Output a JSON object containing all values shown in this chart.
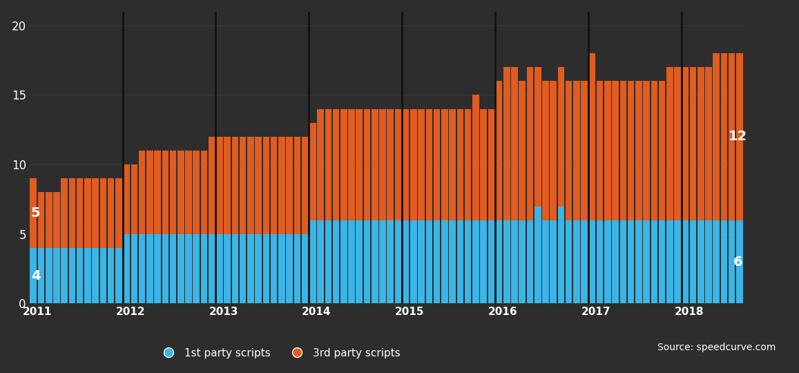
{
  "background_color": "#2d2d2d",
  "axes_background": "#2d2d2d",
  "first_party_color": "#3ab5e6",
  "third_party_color": "#e05c20",
  "grid_color": "#444444",
  "text_color": "#ffffff",
  "ylim_max": 21,
  "yticks": [
    0,
    5,
    10,
    15,
    20
  ],
  "legend_labels": [
    "1st party scripts",
    "3rd party scripts"
  ],
  "source_text": "Source: speedcurve.com",
  "annotation_first_val": "4",
  "annotation_third_val": "5",
  "annotation_first_end": "6",
  "annotation_third_end": "12",
  "year_labels": [
    "2011",
    "2012",
    "2013",
    "2014",
    "2015",
    "2016",
    "2017",
    "2018"
  ],
  "year_starts": [
    0,
    12,
    24,
    36,
    48,
    60,
    72,
    84
  ],
  "first_party": [
    4,
    4,
    4,
    4,
    4,
    4,
    4,
    4,
    4,
    4,
    4,
    4,
    5,
    5,
    5,
    5,
    5,
    5,
    5,
    5,
    5,
    5,
    5,
    5,
    5,
    5,
    5,
    5,
    5,
    5,
    5,
    5,
    5,
    5,
    5,
    5,
    6,
    6,
    6,
    6,
    6,
    6,
    6,
    6,
    6,
    6,
    6,
    6,
    6,
    6,
    6,
    6,
    6,
    6,
    6,
    6,
    6,
    6,
    6,
    6,
    6,
    6,
    6,
    6,
    6,
    7,
    6,
    6,
    7,
    6,
    6,
    6,
    6,
    6,
    6,
    6,
    6,
    6,
    6,
    6,
    6,
    6,
    6,
    6,
    6,
    6,
    6,
    6,
    6,
    6,
    6,
    6
  ],
  "third_party": [
    5,
    4,
    4,
    4,
    5,
    5,
    5,
    5,
    5,
    5,
    5,
    5,
    5,
    5,
    6,
    6,
    6,
    6,
    6,
    6,
    6,
    6,
    6,
    7,
    7,
    7,
    7,
    7,
    7,
    7,
    7,
    7,
    7,
    7,
    7,
    7,
    7,
    8,
    8,
    8,
    8,
    8,
    8,
    8,
    8,
    8,
    8,
    8,
    8,
    8,
    8,
    8,
    8,
    8,
    8,
    8,
    8,
    9,
    8,
    8,
    10,
    11,
    11,
    10,
    11,
    10,
    10,
    10,
    10,
    10,
    10,
    10,
    12,
    10,
    10,
    10,
    10,
    10,
    10,
    10,
    10,
    10,
    11,
    11,
    11,
    11,
    11,
    11,
    12,
    12,
    12,
    12
  ]
}
